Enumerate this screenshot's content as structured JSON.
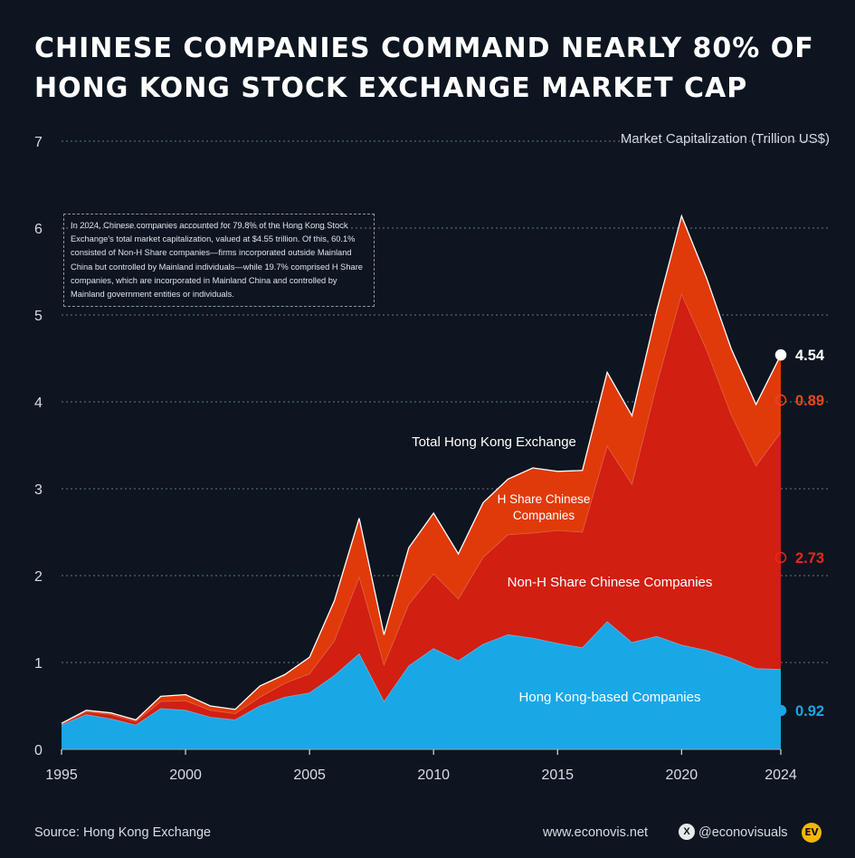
{
  "title": {
    "line1": "CHINESE COMPANIES COMMAND NEARLY 80% OF",
    "line2": "HONG KONG STOCK EXCHANGE MARKET CAP"
  },
  "note": "In 2024, Chinese companies accounted for 79.8% of the Hong Kong Stock Exchange's total market capitalization, valued at $4.55 trillion. Of this, 60.1% consisted of Non-H Share companies—firms incorporated outside Mainland China but controlled by Mainland individuals—while 19.7% comprised H Share companies, which are incorporated in Mainland China and controlled by Mainland government entities or individuals.",
  "footer": {
    "source": "Source: Hong Kong Exchange",
    "site": "www.econovis.net",
    "x_icon": "X",
    "handle": "@econovisuals",
    "logo": "EV"
  },
  "colors": {
    "background": "#0d1520",
    "hk": "#1aa7e6",
    "non_h": "#d11f12",
    "h_share": "#e03a0a",
    "total_line": "#ffffff"
  },
  "chart_data": {
    "type": "area",
    "stacked": true,
    "ylabel": "Market Capitalization (Trillion US$)",
    "ylim": [
      0,
      7
    ],
    "yticks": [
      "0",
      "1",
      "2",
      "3",
      "4",
      "5",
      "6",
      "7"
    ],
    "xlim": [
      1995,
      2024
    ],
    "xticks": [
      "1995",
      "2000",
      "2005",
      "2010",
      "2015",
      "2020",
      "2024"
    ],
    "grid": true,
    "x": [
      1995,
      1996,
      1997,
      1998,
      1999,
      2000,
      2001,
      2002,
      2003,
      2004,
      2005,
      2006,
      2007,
      2008,
      2009,
      2010,
      2011,
      2012,
      2013,
      2014,
      2015,
      2016,
      2017,
      2018,
      2019,
      2020,
      2021,
      2022,
      2023,
      2024
    ],
    "series": [
      {
        "name": "Hong Kong-based Companies",
        "values": [
          0.28,
          0.4,
          0.35,
          0.28,
          0.47,
          0.45,
          0.37,
          0.34,
          0.5,
          0.6,
          0.65,
          0.85,
          1.1,
          0.55,
          0.96,
          1.16,
          1.02,
          1.21,
          1.32,
          1.28,
          1.22,
          1.17,
          1.47,
          1.23,
          1.3,
          1.2,
          1.14,
          1.05,
          0.93,
          0.92
        ]
      },
      {
        "name": "Non-H Share Chinese Companies",
        "values": [
          0.01,
          0.03,
          0.05,
          0.04,
          0.08,
          0.11,
          0.08,
          0.07,
          0.1,
          0.16,
          0.22,
          0.4,
          0.88,
          0.42,
          0.71,
          0.86,
          0.71,
          1.0,
          1.15,
          1.21,
          1.3,
          1.33,
          2.02,
          1.82,
          2.9,
          4.04,
          3.46,
          2.8,
          2.33,
          2.73
        ]
      },
      {
        "name": "H Share Chinese Companies",
        "values": [
          0.01,
          0.02,
          0.02,
          0.02,
          0.06,
          0.07,
          0.05,
          0.05,
          0.13,
          0.1,
          0.19,
          0.46,
          0.68,
          0.35,
          0.65,
          0.7,
          0.52,
          0.63,
          0.64,
          0.75,
          0.68,
          0.71,
          0.85,
          0.79,
          0.85,
          0.9,
          0.83,
          0.76,
          0.71,
          0.89
        ]
      }
    ],
    "total": {
      "name": "Total Hong Kong Exchange",
      "values": [
        0.3,
        0.45,
        0.42,
        0.34,
        0.61,
        0.63,
        0.5,
        0.46,
        0.73,
        0.86,
        1.06,
        1.71,
        2.66,
        1.32,
        2.32,
        2.72,
        2.25,
        2.84,
        3.11,
        3.24,
        3.2,
        3.21,
        4.34,
        3.84,
        5.05,
        6.14,
        5.43,
        4.61,
        3.97,
        4.54
      ]
    },
    "area_labels": [
      {
        "text": "Total Hong Kong Exchange",
        "color": "#ffffff"
      },
      {
        "text": "H Share Chinese",
        "text2": "Companies",
        "color": "#ffffff"
      },
      {
        "text": "Non-H Share Chinese Companies",
        "color": "#ffffff"
      },
      {
        "text": "Hong Kong-based Companies",
        "color": "#ffffff"
      }
    ],
    "end_labels": [
      {
        "text": "4.54",
        "value": 4.54,
        "color": "#ffffff"
      },
      {
        "text": "0.89",
        "value": 0.89,
        "color": "#e8471c"
      },
      {
        "text": "2.73",
        "value": 2.73,
        "color": "#e8291c"
      },
      {
        "text": "0.92",
        "value": 0.92,
        "color": "#1aa7e6"
      }
    ]
  }
}
